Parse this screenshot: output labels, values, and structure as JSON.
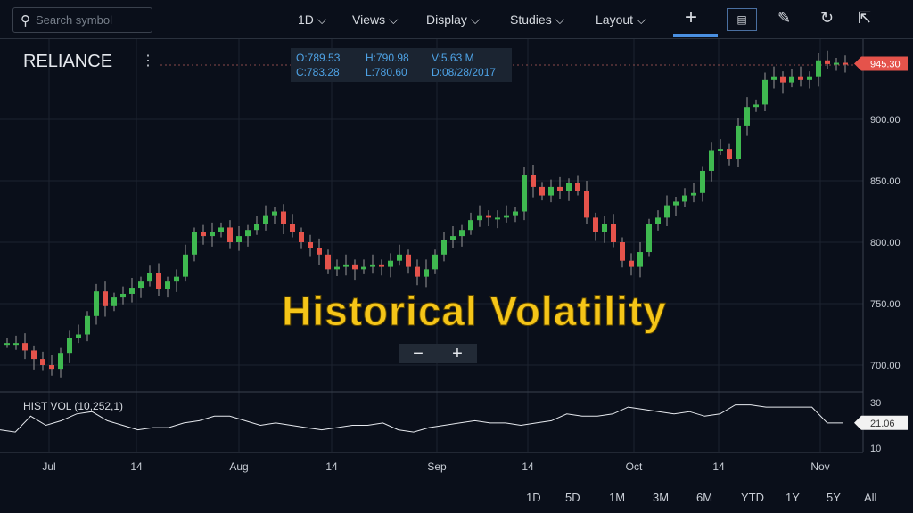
{
  "toolbar": {
    "search_placeholder": "Search symbol",
    "interval": "1D ⌵",
    "views": "Views ⌵",
    "display": "Display ⌵",
    "studies": "Studies ⌵",
    "layout": "Layout ⌵",
    "icons": [
      "crosshair-icon",
      "annotation-icon",
      "pencil-icon",
      "reset-icon",
      "share-icon"
    ]
  },
  "symbol": "RELIANCE",
  "ohlc": {
    "o": "O:789.53",
    "h": "H:790.98",
    "v": "V:5.63 M",
    "c": "C:783.28",
    "l": "L:780.60",
    "d": "D:08/28/2017"
  },
  "overlay_title": "Historical Volatility",
  "zoom": {
    "minus": "−",
    "plus": "+"
  },
  "indicator_label": "HIST VOL (10,252,1)",
  "ranges": [
    "1D",
    "5D",
    "1M",
    "3M",
    "6M",
    "YTD",
    "1Y",
    "5Y",
    "All"
  ],
  "colors": {
    "up": "#3fb950",
    "down": "#e5534b",
    "background": "#0a0f1a",
    "line": "#e6e9ee"
  },
  "chart_data": {
    "type": "candlestick",
    "x_ticks": [
      "Jul",
      "14",
      "Aug",
      "14",
      "Sep",
      "14",
      "Oct",
      "14",
      "Nov"
    ],
    "y_ticks": [
      "700.00",
      "750.00",
      "800.00",
      "850.00",
      "900.00"
    ],
    "ylim": [
      685,
      960
    ],
    "last_price": "945.30",
    "closes": [
      718,
      718,
      712,
      705,
      700,
      697,
      710,
      722,
      725,
      740,
      760,
      748,
      755,
      758,
      763,
      768,
      775,
      762,
      768,
      772,
      790,
      808,
      805,
      808,
      812,
      800,
      805,
      810,
      815,
      822,
      825,
      815,
      808,
      800,
      795,
      790,
      778,
      780,
      782,
      778,
      780,
      782,
      780,
      785,
      790,
      780,
      772,
      778,
      790,
      802,
      805,
      810,
      818,
      822,
      820,
      820,
      822,
      825,
      855,
      845,
      838,
      845,
      842,
      848,
      842,
      820,
      808,
      815,
      800,
      785,
      780,
      792,
      815,
      820,
      830,
      833,
      838,
      840,
      858,
      875,
      876,
      868,
      895,
      910,
      912,
      932,
      935,
      930,
      935,
      932,
      935,
      948,
      945,
      946,
      945
    ],
    "hist_vol": {
      "label": "HIST VOL (10,252,1)",
      "y_ticks": [
        "30",
        "10"
      ],
      "ylim": [
        10,
        30
      ],
      "last": "21.06",
      "values": [
        18,
        17,
        24,
        20,
        22,
        25,
        26,
        22,
        20,
        18,
        19,
        19,
        21,
        22,
        24,
        24,
        22,
        20,
        21,
        20,
        19,
        18,
        19,
        20,
        20,
        21,
        18,
        17,
        19,
        20,
        21,
        22,
        21,
        21,
        20,
        21,
        22,
        25,
        24,
        24,
        25,
        28,
        27,
        26,
        25,
        26,
        24,
        25,
        29,
        29,
        28,
        28,
        28,
        28,
        21,
        21
      ]
    }
  }
}
